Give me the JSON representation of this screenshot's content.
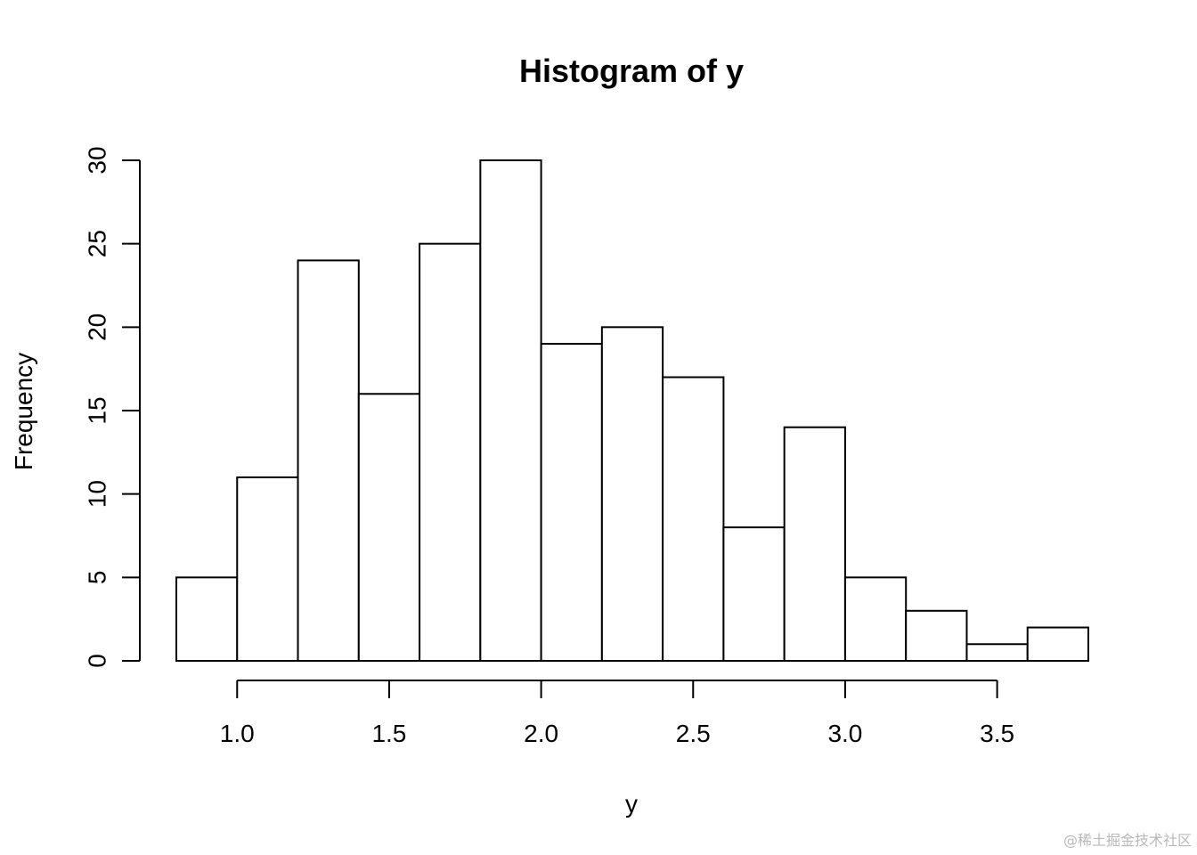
{
  "chart_data": {
    "type": "bar",
    "title": "Histogram of y",
    "xlabel": "y",
    "ylabel": "Frequency",
    "bin_edges": [
      0.8,
      1.0,
      1.2,
      1.4,
      1.6,
      1.8,
      2.0,
      2.2,
      2.4,
      2.6,
      2.8,
      3.0,
      3.2,
      3.4,
      3.6,
      3.8
    ],
    "values": [
      5,
      11,
      24,
      16,
      25,
      30,
      19,
      20,
      17,
      8,
      14,
      5,
      3,
      1,
      2
    ],
    "xticks": [
      1.0,
      1.5,
      2.0,
      2.5,
      3.0,
      3.5
    ],
    "xtick_labels": [
      "1.0",
      "1.5",
      "2.0",
      "2.5",
      "3.0",
      "3.5"
    ],
    "yticks": [
      0,
      5,
      10,
      15,
      20,
      25,
      30
    ],
    "ytick_labels": [
      "0",
      "5",
      "10",
      "15",
      "20",
      "25",
      "30"
    ],
    "xlim": [
      0.8,
      3.8
    ],
    "ylim": [
      0,
      30
    ],
    "grid": false,
    "bar_fill": "#ffffff",
    "bar_stroke": "#000000"
  },
  "watermark": "@稀土掘金技术社区"
}
